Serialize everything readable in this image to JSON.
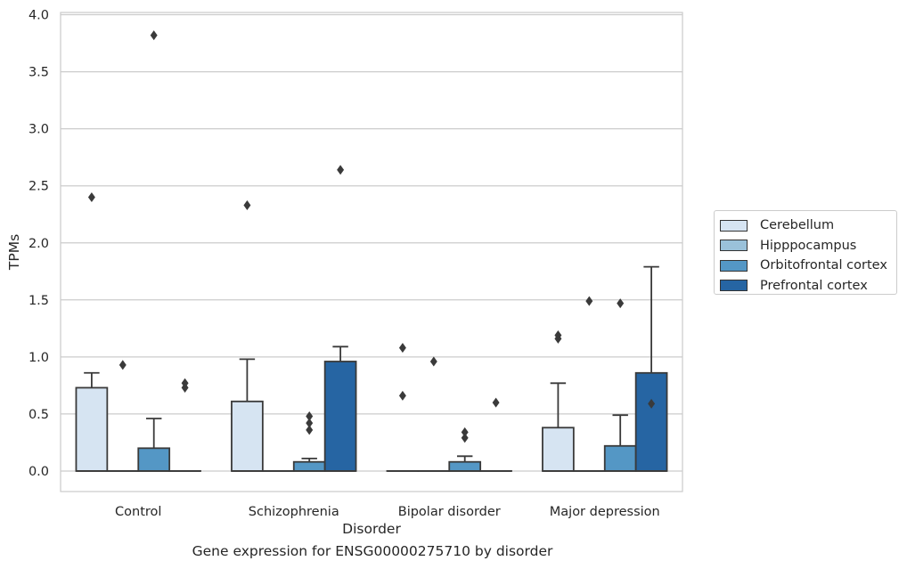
{
  "chart_data": {
    "type": "box",
    "title": "",
    "caption": "Gene expression for ENSG00000275710 by disorder",
    "xlabel": "Disorder",
    "ylabel": "TPMs",
    "ylim": [
      -0.18,
      4.02
    ],
    "yticks": [
      "0.0",
      "0.5",
      "1.0",
      "1.5",
      "2.0",
      "2.5",
      "3.0",
      "3.5",
      "4.0"
    ],
    "ytick_values": [
      0,
      0.5,
      1.0,
      1.5,
      2.0,
      2.5,
      3.0,
      3.5,
      4.0
    ],
    "grid": "horizontal",
    "legend_position": "right",
    "categories": [
      "Control",
      "Schizophrenia",
      "Bipolar disorder",
      "Major depression"
    ],
    "series": [
      {
        "name": "Cerebellum",
        "color": "#d6e4f2",
        "boxes": [
          {
            "q1": 0,
            "median": 0,
            "q3": 0.73,
            "whisker_low": 0,
            "whisker_high": 0.86,
            "outliers": [
              2.4
            ]
          },
          {
            "q1": 0,
            "median": 0,
            "q3": 0.61,
            "whisker_low": 0,
            "whisker_high": 0.98,
            "outliers": [
              2.33
            ]
          },
          {
            "q1": 0,
            "median": 0,
            "q3": 0,
            "whisker_low": 0,
            "whisker_high": 0,
            "outliers": [
              0.66,
              1.08
            ]
          },
          {
            "q1": 0,
            "median": 0,
            "q3": 0.38,
            "whisker_low": 0,
            "whisker_high": 0.77,
            "outliers": [
              1.16,
              1.19
            ]
          }
        ]
      },
      {
        "name": "Hipppocampus",
        "color": "#9ac1da",
        "boxes": [
          {
            "q1": 0,
            "median": 0,
            "q3": 0,
            "whisker_low": 0,
            "whisker_high": 0,
            "outliers": [
              0.93
            ]
          },
          {
            "q1": 0,
            "median": 0,
            "q3": 0,
            "whisker_low": 0,
            "whisker_high": 0,
            "outliers": []
          },
          {
            "q1": 0,
            "median": 0,
            "q3": 0,
            "whisker_low": 0,
            "whisker_high": 0,
            "outliers": [
              0.96
            ]
          },
          {
            "q1": 0,
            "median": 0,
            "q3": 0,
            "whisker_low": 0,
            "whisker_high": 0,
            "outliers": [
              1.49
            ]
          }
        ]
      },
      {
        "name": "Orbitofrontal cortex",
        "color": "#5497c5",
        "boxes": [
          {
            "q1": 0,
            "median": 0,
            "q3": 0.2,
            "whisker_low": 0,
            "whisker_high": 0.46,
            "outliers": [
              3.82
            ]
          },
          {
            "q1": 0,
            "median": 0,
            "q3": 0.08,
            "whisker_low": 0,
            "whisker_high": 0.11,
            "outliers": [
              0.36,
              0.42,
              0.48
            ]
          },
          {
            "q1": 0,
            "median": 0,
            "q3": 0.08,
            "whisker_low": 0,
            "whisker_high": 0.13,
            "outliers": [
              0.29,
              0.34
            ]
          },
          {
            "q1": 0,
            "median": 0,
            "q3": 0.22,
            "whisker_low": 0,
            "whisker_high": 0.49,
            "outliers": [
              1.47
            ]
          }
        ]
      },
      {
        "name": "Prefrontal cortex",
        "color": "#2665a3",
        "boxes": [
          {
            "q1": 0,
            "median": 0,
            "q3": 0,
            "whisker_low": 0,
            "whisker_high": 0,
            "outliers": [
              0.73,
              0.77
            ]
          },
          {
            "q1": 0,
            "median": 0,
            "q3": 0.96,
            "whisker_low": 0,
            "whisker_high": 1.09,
            "outliers": [
              2.64
            ]
          },
          {
            "q1": 0,
            "median": 0,
            "q3": 0,
            "whisker_low": 0,
            "whisker_high": 0,
            "outliers": [
              0.6
            ]
          },
          {
            "q1": 0,
            "median": 0,
            "q3": 0.86,
            "whisker_low": 0,
            "whisker_high": 1.79,
            "outliers": [
              0.59
            ]
          }
        ]
      }
    ]
  }
}
